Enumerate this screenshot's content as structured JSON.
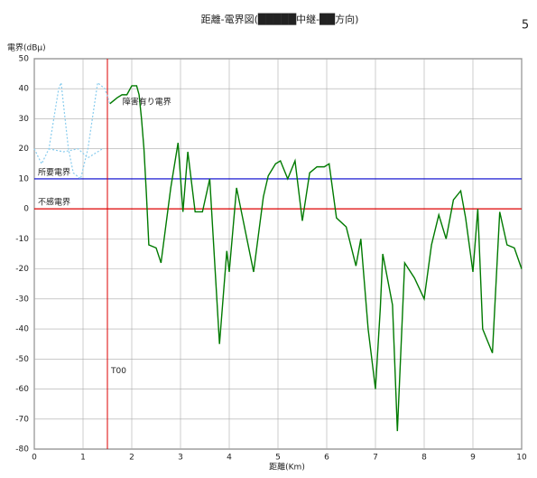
{
  "chart_data": {
    "type": "line",
    "title": "距離-電界図(█████中継-██方向)",
    "page_number": "5",
    "y_label": "電界(dBμ)",
    "x_label": "距離(Km)",
    "xlim": [
      0,
      10
    ],
    "xticks": [
      0,
      1,
      2,
      3,
      4,
      5,
      6,
      7,
      8,
      9,
      10
    ],
    "ylim": [
      -80,
      50
    ],
    "yticks": [
      -80,
      -70,
      -60,
      -50,
      -40,
      -30,
      -20,
      -10,
      0,
      10,
      20,
      30,
      40,
      50
    ],
    "grid": true,
    "ref_lines": [
      {
        "axis": "y",
        "value": 10,
        "color": "#0000cc",
        "label": "所要電界"
      },
      {
        "axis": "y",
        "value": 0,
        "color": "#dd0000",
        "label": "不感電界"
      },
      {
        "axis": "x",
        "value": 1.5,
        "color": "#dd0000",
        "label": "T00"
      }
    ],
    "series": [
      {
        "name": "障害有り電界",
        "color": "#007a00",
        "dash": false,
        "x": [
          1.55,
          1.7,
          1.8,
          1.9,
          2.0,
          2.1,
          2.15,
          2.2,
          2.25,
          2.3,
          2.35,
          2.5,
          2.6,
          2.8,
          2.95,
          3.05,
          3.15,
          3.3,
          3.45,
          3.6,
          3.8,
          3.95,
          4.0,
          4.15,
          4.3,
          4.5,
          4.7,
          4.8,
          4.95,
          5.05,
          5.2,
          5.35,
          5.5,
          5.65,
          5.8,
          5.95,
          6.05,
          6.2,
          6.4,
          6.6,
          6.7,
          6.85,
          7.0,
          7.1,
          7.15,
          7.35,
          7.45,
          7.6,
          7.8,
          8.0,
          8.15,
          8.3,
          8.45,
          8.6,
          8.75,
          8.85,
          9.0,
          9.1,
          9.2,
          9.4,
          9.55,
          9.7,
          9.85,
          10.0
        ],
        "values": [
          35,
          37,
          38,
          38,
          41,
          41,
          38,
          30,
          20,
          5,
          -12,
          -13,
          -18,
          7,
          22,
          -1,
          19,
          -1,
          -1,
          10,
          -45,
          -14,
          -21,
          7,
          -5,
          -21,
          4,
          11,
          15,
          16,
          10,
          16,
          -4,
          12,
          14,
          14,
          15,
          -3,
          -6,
          -19,
          -10,
          -40,
          -60,
          -33,
          -15,
          -32,
          -74,
          -18,
          -23,
          -30,
          -12,
          -2,
          -10,
          3,
          6,
          -3,
          -21,
          0,
          -40,
          -48,
          -1,
          -12,
          -13,
          -20
        ]
      },
      {
        "color": "#88ccee",
        "dash": true,
        "x": [
          0,
          0.15,
          0.3,
          0.5,
          0.55,
          0.7,
          0.8,
          0.95,
          1.1,
          1.3,
          1.45,
          1.55
        ],
        "values": [
          20,
          15,
          20,
          40,
          42,
          20,
          12,
          10,
          20,
          42,
          40,
          35
        ]
      },
      {
        "color": "#88ccee",
        "dash": true,
        "x": [
          0.3,
          0.6,
          0.9,
          1.1,
          1.4
        ],
        "values": [
          20,
          19,
          20,
          17,
          20
        ]
      }
    ]
  }
}
